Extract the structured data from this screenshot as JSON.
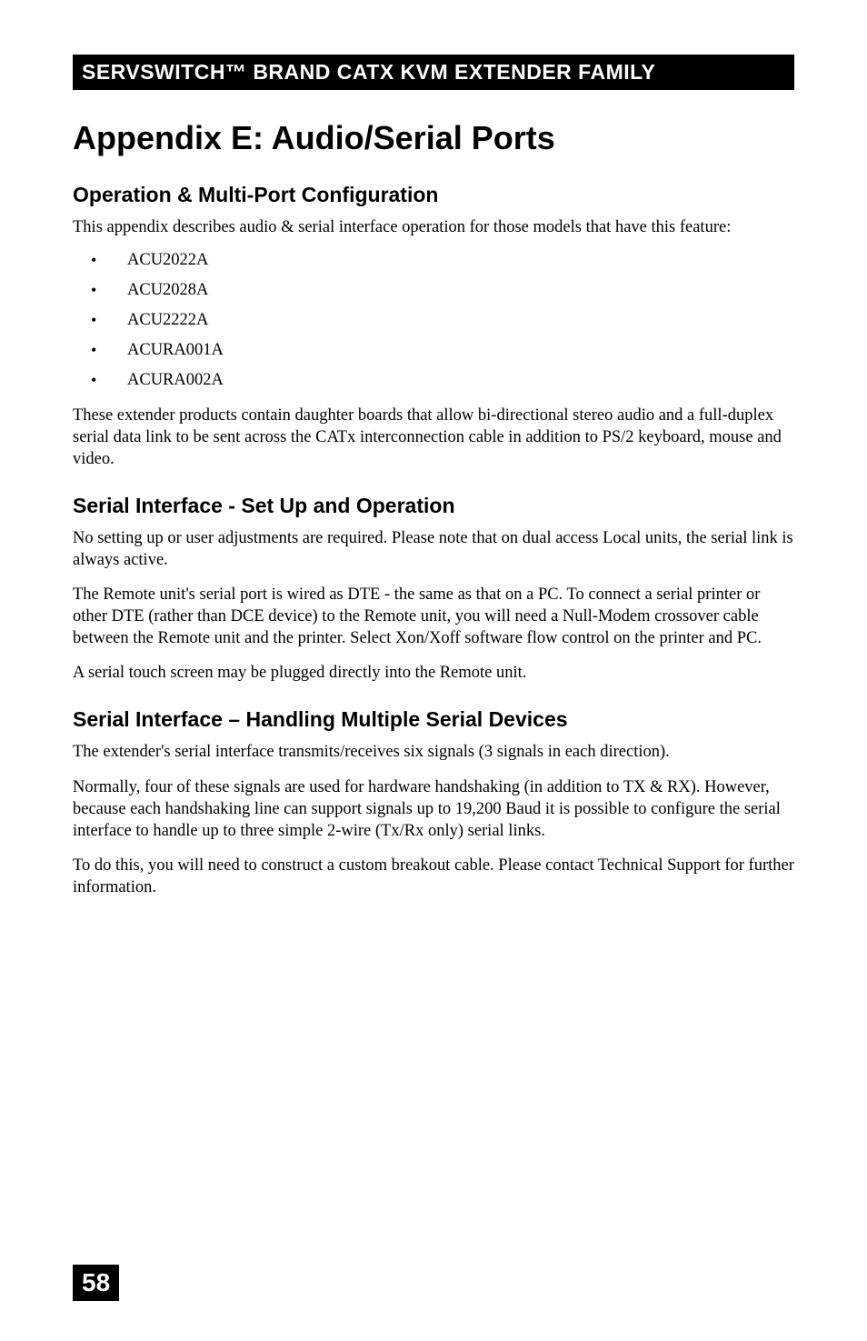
{
  "header": {
    "text": "SERVSWITCH™ BRAND CATX KVM EXTENDER FAMILY"
  },
  "title": "Appendix E: Audio/Serial Ports",
  "section1": {
    "heading": "Operation & Multi-Port Configuration",
    "intro": "This appendix describes audio & serial interface operation for those models that have this feature:",
    "models": [
      "ACU2022A",
      "ACU2028A",
      "ACU2222A",
      "ACURA001A",
      "ACURA002A"
    ],
    "para": "These extender products contain daughter boards that allow bi-directional stereo audio and a full-duplex serial data link to be sent across the CATx interconnection cable in addition to PS/2 keyboard, mouse and video."
  },
  "section2": {
    "heading": "Serial Interface - Set Up and Operation",
    "para1": "No setting up or user adjustments are required. Please note that on dual access Local units, the serial link is always active.",
    "para2": "The Remote unit's serial port is wired as DTE - the same as that on a PC. To connect a serial printer or other DTE (rather than DCE device) to the Remote unit, you will need a Null-Modem crossover cable between the Remote unit and the printer. Select Xon/Xoff software flow control on the printer and PC.",
    "para3": "A serial touch screen may be plugged directly into the Remote unit."
  },
  "section3": {
    "heading": "Serial Interface – Handling Multiple Serial Devices",
    "para1": "The extender's serial interface transmits/receives six signals (3 signals in each direction).",
    "para2": "Normally, four of these signals are used for hardware handshaking (in addition to TX & RX). However, because each handshaking line can support signals up to 19,200 Baud it is possible to configure the serial interface to handle up to three simple 2-wire (Tx/Rx only) serial links.",
    "para3": "To do this, you will need to construct a custom breakout cable. Please contact Technical Support for further information."
  },
  "pageNumber": "58"
}
